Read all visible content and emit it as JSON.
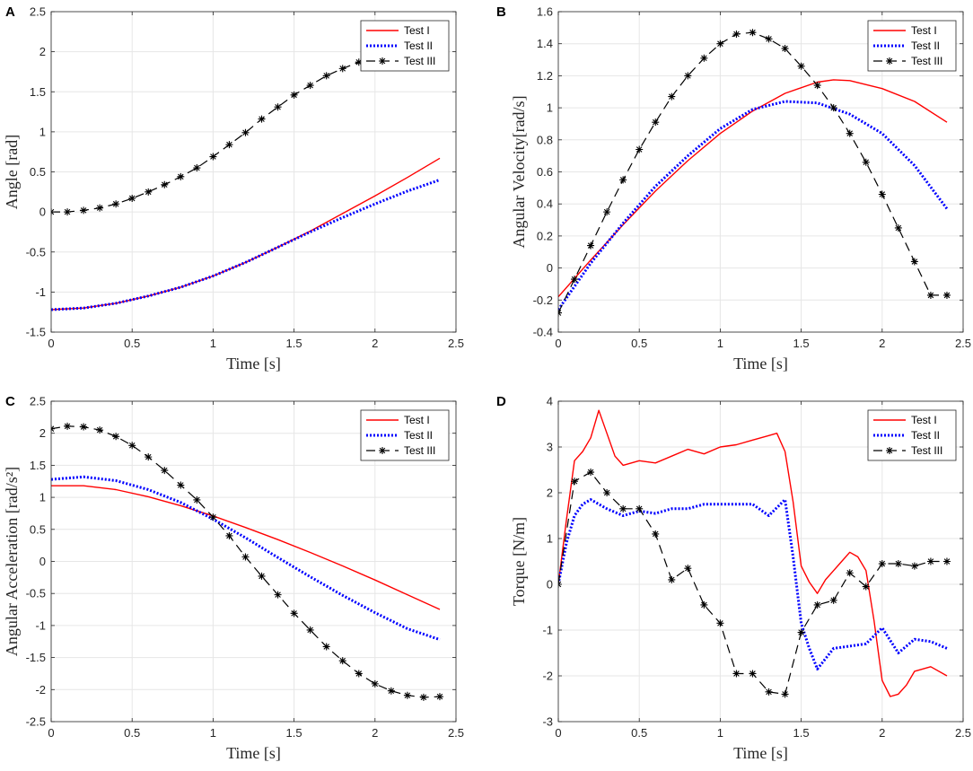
{
  "chart_data": [
    {
      "panel": "A",
      "type": "line",
      "xlabel": "Time [s]",
      "ylabel": "Angle [rad]",
      "xlim": [
        0,
        2.5
      ],
      "ylim": [
        -1.5,
        2.5
      ],
      "xticks": [
        0,
        0.5,
        1,
        1.5,
        2,
        2.5
      ],
      "yticks": [
        -1.5,
        -1,
        -0.5,
        0,
        0.5,
        1,
        1.5,
        2,
        2.5
      ],
      "xticklabels": [
        "0",
        "0.5",
        "1",
        "1.5",
        "2",
        "2.5"
      ],
      "yticklabels": [
        "-1.5",
        "-1",
        "-0.5",
        "0",
        "0.5",
        "1",
        "1.5",
        "2",
        "2.5"
      ],
      "legend": [
        "Test I",
        "Test II",
        "Test III"
      ],
      "legend_position": "top-right",
      "grid": true,
      "series": [
        {
          "name": "Test I",
          "color": "#ff0000",
          "style": "solid",
          "x": [
            0,
            0.2,
            0.4,
            0.6,
            0.8,
            1.0,
            1.2,
            1.4,
            1.6,
            1.8,
            2.0,
            2.2,
            2.4
          ],
          "y": [
            -1.22,
            -1.2,
            -1.14,
            -1.05,
            -0.94,
            -0.8,
            -0.63,
            -0.44,
            -0.24,
            -0.02,
            0.2,
            0.43,
            0.67
          ]
        },
        {
          "name": "Test II",
          "color": "#0000ff",
          "style": "dotted",
          "x": [
            0,
            0.2,
            0.4,
            0.6,
            0.8,
            1.0,
            1.2,
            1.4,
            1.6,
            1.8,
            2.0,
            2.2,
            2.4
          ],
          "y": [
            -1.22,
            -1.2,
            -1.14,
            -1.05,
            -0.94,
            -0.8,
            -0.63,
            -0.44,
            -0.25,
            -0.07,
            0.1,
            0.26,
            0.4
          ]
        },
        {
          "name": "Test III",
          "color": "#000000",
          "style": "dashed",
          "marker": "*",
          "x": [
            0,
            0.1,
            0.2,
            0.3,
            0.4,
            0.5,
            0.6,
            0.7,
            0.8,
            0.9,
            1.0,
            1.1,
            1.2,
            1.3,
            1.4,
            1.5,
            1.6,
            1.7,
            1.8,
            1.9
          ],
          "y": [
            0,
            0,
            0.02,
            0.05,
            0.1,
            0.17,
            0.25,
            0.34,
            0.44,
            0.55,
            0.69,
            0.84,
            0.99,
            1.16,
            1.31,
            1.46,
            1.58,
            1.7,
            1.79,
            1.87
          ]
        }
      ]
    },
    {
      "panel": "B",
      "type": "line",
      "xlabel": "Time [s]",
      "ylabel": "Angular Velocity[rad/s]",
      "xlim": [
        0,
        2.5
      ],
      "ylim": [
        -0.4,
        1.6
      ],
      "xticks": [
        0,
        0.5,
        1,
        1.5,
        2,
        2.5
      ],
      "yticks": [
        -0.4,
        -0.2,
        0,
        0.2,
        0.4,
        0.6,
        0.8,
        1,
        1.2,
        1.4,
        1.6
      ],
      "xticklabels": [
        "0",
        "0.5",
        "1",
        "1.5",
        "2",
        "2.5"
      ],
      "yticklabels": [
        "-0.4",
        "-0.2",
        "0",
        "0.2",
        "0.4",
        "0.6",
        "0.8",
        "1",
        "1.2",
        "1.4",
        "1.6"
      ],
      "legend": [
        "Test I",
        "Test II",
        "Test III"
      ],
      "legend_position": "top-right",
      "grid": true,
      "series": [
        {
          "name": "Test I",
          "color": "#ff0000",
          "style": "solid",
          "x": [
            0,
            0.2,
            0.4,
            0.6,
            0.8,
            1.0,
            1.2,
            1.4,
            1.6,
            1.7,
            1.8,
            2.0,
            2.2,
            2.4
          ],
          "y": [
            -0.18,
            0.05,
            0.27,
            0.48,
            0.67,
            0.84,
            0.98,
            1.09,
            1.16,
            1.175,
            1.17,
            1.12,
            1.04,
            0.91
          ]
        },
        {
          "name": "Test II",
          "color": "#0000ff",
          "style": "dotted",
          "x": [
            0,
            0.2,
            0.4,
            0.6,
            0.8,
            1.0,
            1.2,
            1.4,
            1.6,
            1.8,
            2.0,
            2.2,
            2.4
          ],
          "y": [
            -0.26,
            0.03,
            0.28,
            0.51,
            0.7,
            0.87,
            0.99,
            1.04,
            1.03,
            0.96,
            0.84,
            0.64,
            0.37
          ]
        },
        {
          "name": "Test III",
          "color": "#000000",
          "style": "dashed",
          "marker": "*",
          "x": [
            0,
            0.1,
            0.2,
            0.3,
            0.4,
            0.5,
            0.6,
            0.7,
            0.8,
            0.9,
            1.0,
            1.1,
            1.2,
            1.3,
            1.4,
            1.5,
            1.6,
            1.7,
            1.8,
            1.9,
            2.0,
            2.1,
            2.2,
            2.3,
            2.4
          ],
          "y": [
            -0.28,
            -0.07,
            0.14,
            0.35,
            0.55,
            0.74,
            0.91,
            1.07,
            1.2,
            1.31,
            1.4,
            1.46,
            1.47,
            1.43,
            1.37,
            1.26,
            1.14,
            1.0,
            0.84,
            0.66,
            0.46,
            0.25,
            0.04,
            -0.17,
            -0.17
          ]
        }
      ]
    },
    {
      "panel": "C",
      "type": "line",
      "xlabel": "Time [s]",
      "ylabel": "Angular Acceleration [rad/s²]",
      "xlim": [
        0,
        2.5
      ],
      "ylim": [
        -2.5,
        2.5
      ],
      "xticks": [
        0,
        0.5,
        1,
        1.5,
        2,
        2.5
      ],
      "yticks": [
        -2.5,
        -2,
        -1.5,
        -1,
        -0.5,
        0,
        0.5,
        1,
        1.5,
        2,
        2.5
      ],
      "xticklabels": [
        "0",
        "0.5",
        "1",
        "1.5",
        "2",
        "2.5"
      ],
      "yticklabels": [
        "-2.5",
        "-2",
        "-1.5",
        "-1",
        "-0.5",
        "0",
        "0.5",
        "1",
        "1.5",
        "2",
        "2.5"
      ],
      "legend": [
        "Test I",
        "Test II",
        "Test III"
      ],
      "legend_position": "top-right",
      "grid": true,
      "series": [
        {
          "name": "Test I",
          "color": "#ff0000",
          "style": "solid",
          "x": [
            0,
            0.2,
            0.4,
            0.6,
            0.8,
            1.0,
            1.2,
            1.4,
            1.6,
            1.8,
            2.0,
            2.2,
            2.4
          ],
          "y": [
            1.18,
            1.18,
            1.12,
            1.01,
            0.87,
            0.71,
            0.53,
            0.34,
            0.14,
            -0.07,
            -0.29,
            -0.52,
            -0.75
          ]
        },
        {
          "name": "Test II",
          "color": "#0000ff",
          "style": "dotted",
          "x": [
            0,
            0.2,
            0.4,
            0.6,
            0.8,
            1.0,
            1.2,
            1.4,
            1.6,
            1.8,
            2.0,
            2.2,
            2.4
          ],
          "y": [
            1.28,
            1.32,
            1.26,
            1.12,
            0.92,
            0.66,
            0.37,
            0.06,
            -0.24,
            -0.53,
            -0.8,
            -1.05,
            -1.22
          ]
        },
        {
          "name": "Test III",
          "color": "#000000",
          "style": "dashed",
          "marker": "*",
          "x": [
            0,
            0.1,
            0.2,
            0.3,
            0.4,
            0.5,
            0.6,
            0.7,
            0.8,
            0.9,
            1.0,
            1.1,
            1.2,
            1.3,
            1.4,
            1.5,
            1.6,
            1.7,
            1.8,
            1.9,
            2.0,
            2.1,
            2.2,
            2.3,
            2.4
          ],
          "y": [
            2.07,
            2.11,
            2.1,
            2.05,
            1.95,
            1.81,
            1.63,
            1.42,
            1.19,
            0.96,
            0.69,
            0.4,
            0.07,
            -0.23,
            -0.52,
            -0.81,
            -1.07,
            -1.33,
            -1.55,
            -1.75,
            -1.91,
            -2.02,
            -2.09,
            -2.12,
            -2.11
          ]
        }
      ]
    },
    {
      "panel": "D",
      "type": "line",
      "xlabel": "Time [s]",
      "ylabel": "Torque [N/m]",
      "xlim": [
        0,
        2.5
      ],
      "ylim": [
        -3,
        4
      ],
      "xticks": [
        0,
        0.5,
        1,
        1.5,
        2,
        2.5
      ],
      "yticks": [
        -3,
        -2,
        -1,
        0,
        1,
        2,
        3,
        4
      ],
      "xticklabels": [
        "0",
        "0.5",
        "1",
        "1.5",
        "2",
        "2.5"
      ],
      "yticklabels": [
        "-3",
        "-2",
        "-1",
        "0",
        "1",
        "2",
        "3",
        "4"
      ],
      "legend": [
        "Test I",
        "Test II",
        "Test III"
      ],
      "legend_position": "top-right",
      "grid": true,
      "series": [
        {
          "name": "Test I",
          "color": "#ff0000",
          "style": "solid",
          "x": [
            0,
            0.05,
            0.1,
            0.15,
            0.2,
            0.25,
            0.3,
            0.35,
            0.4,
            0.5,
            0.6,
            0.7,
            0.8,
            0.9,
            1.0,
            1.1,
            1.2,
            1.3,
            1.35,
            1.4,
            1.45,
            1.5,
            1.55,
            1.6,
            1.65,
            1.7,
            1.75,
            1.8,
            1.85,
            1.9,
            1.95,
            2.0,
            2.05,
            2.1,
            2.15,
            2.2,
            2.3,
            2.4
          ],
          "y": [
            0,
            1.4,
            2.7,
            2.9,
            3.2,
            3.8,
            3.3,
            2.8,
            2.6,
            2.7,
            2.65,
            2.8,
            2.95,
            2.85,
            3.0,
            3.05,
            3.15,
            3.25,
            3.3,
            2.9,
            1.8,
            0.4,
            0.05,
            -0.2,
            0.1,
            0.3,
            0.5,
            0.7,
            0.6,
            0.3,
            -0.8,
            -2.1,
            -2.45,
            -2.4,
            -2.2,
            -1.9,
            -1.8,
            -2.0
          ]
        },
        {
          "name": "Test II",
          "color": "#0000ff",
          "style": "dotted",
          "x": [
            0,
            0.05,
            0.1,
            0.15,
            0.2,
            0.3,
            0.4,
            0.5,
            0.6,
            0.7,
            0.8,
            0.9,
            1.0,
            1.1,
            1.2,
            1.3,
            1.4,
            1.45,
            1.5,
            1.55,
            1.6,
            1.7,
            1.8,
            1.9,
            2.0,
            2.1,
            2.2,
            2.3,
            2.4
          ],
          "y": [
            0,
            0.9,
            1.5,
            1.75,
            1.85,
            1.65,
            1.5,
            1.6,
            1.55,
            1.65,
            1.65,
            1.75,
            1.75,
            1.75,
            1.75,
            1.5,
            1.85,
            0.6,
            -0.85,
            -1.4,
            -1.85,
            -1.4,
            -1.35,
            -1.3,
            -0.95,
            -1.5,
            -1.2,
            -1.25,
            -1.4
          ]
        },
        {
          "name": "Test III",
          "color": "#000000",
          "style": "dashed",
          "marker": "*",
          "x": [
            0,
            0.1,
            0.2,
            0.3,
            0.4,
            0.5,
            0.6,
            0.7,
            0.8,
            0.9,
            1.0,
            1.1,
            1.2,
            1.3,
            1.4,
            1.5,
            1.6,
            1.7,
            1.8,
            1.9,
            2.0,
            2.1,
            2.2,
            2.3,
            2.4
          ],
          "y": [
            0,
            2.25,
            2.45,
            2.0,
            1.65,
            1.65,
            1.1,
            0.1,
            0.35,
            -0.45,
            -0.85,
            -1.95,
            -1.95,
            -2.35,
            -2.4,
            -1.05,
            -0.45,
            -0.35,
            0.25,
            -0.05,
            0.45,
            0.45,
            0.4,
            0.5,
            0.5
          ]
        }
      ]
    }
  ]
}
